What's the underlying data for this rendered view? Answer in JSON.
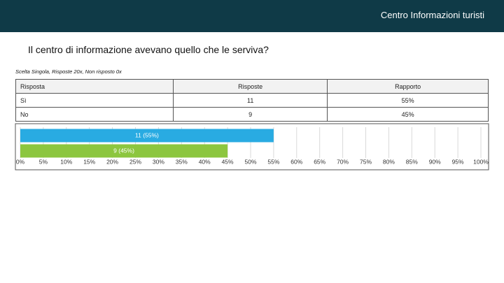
{
  "header": {
    "title": "Centro Informazioni turisti"
  },
  "question": "Il centro di informazione avevano quello che le serviva?",
  "subtitle": "Scelta Singola, Risposte 20x, Non risposto 0x",
  "table": {
    "header": [
      "Risposta",
      "Risposte",
      "Rapporto"
    ],
    "rows": [
      [
        "Sì",
        "11",
        "55%"
      ],
      [
        "No",
        "9",
        "45%"
      ]
    ]
  },
  "chart_data": {
    "type": "hbar",
    "values": [
      55,
      45
    ],
    "value_labels": [
      "11 (55%)",
      "9 (45%)"
    ],
    "colors": [
      "#29abe2",
      "#8cc63f"
    ],
    "xlim": [
      0,
      100
    ],
    "xticks": [
      {
        "value": 0,
        "label": "0%"
      },
      {
        "value": 5,
        "label": "5%"
      },
      {
        "value": 10,
        "label": "10%"
      },
      {
        "value": 15,
        "label": "15%"
      },
      {
        "value": 20,
        "label": "20%"
      },
      {
        "value": 25,
        "label": "25%"
      },
      {
        "value": 30,
        "label": "30%"
      },
      {
        "value": 35,
        "label": "35%"
      },
      {
        "value": 40,
        "label": "40%"
      },
      {
        "value": 45,
        "label": "45%"
      },
      {
        "value": 50,
        "label": "50%"
      },
      {
        "value": 55,
        "label": "55%"
      },
      {
        "value": 60,
        "label": "60%"
      },
      {
        "value": 65,
        "label": "65%"
      },
      {
        "value": 70,
        "label": "70%"
      },
      {
        "value": 75,
        "label": "75%"
      },
      {
        "value": 80,
        "label": "80%"
      },
      {
        "value": 85,
        "label": "85%"
      },
      {
        "value": 90,
        "label": "90%"
      },
      {
        "value": 95,
        "label": "95%"
      },
      {
        "value": 100,
        "label": "100%"
      }
    ],
    "grid": true
  }
}
